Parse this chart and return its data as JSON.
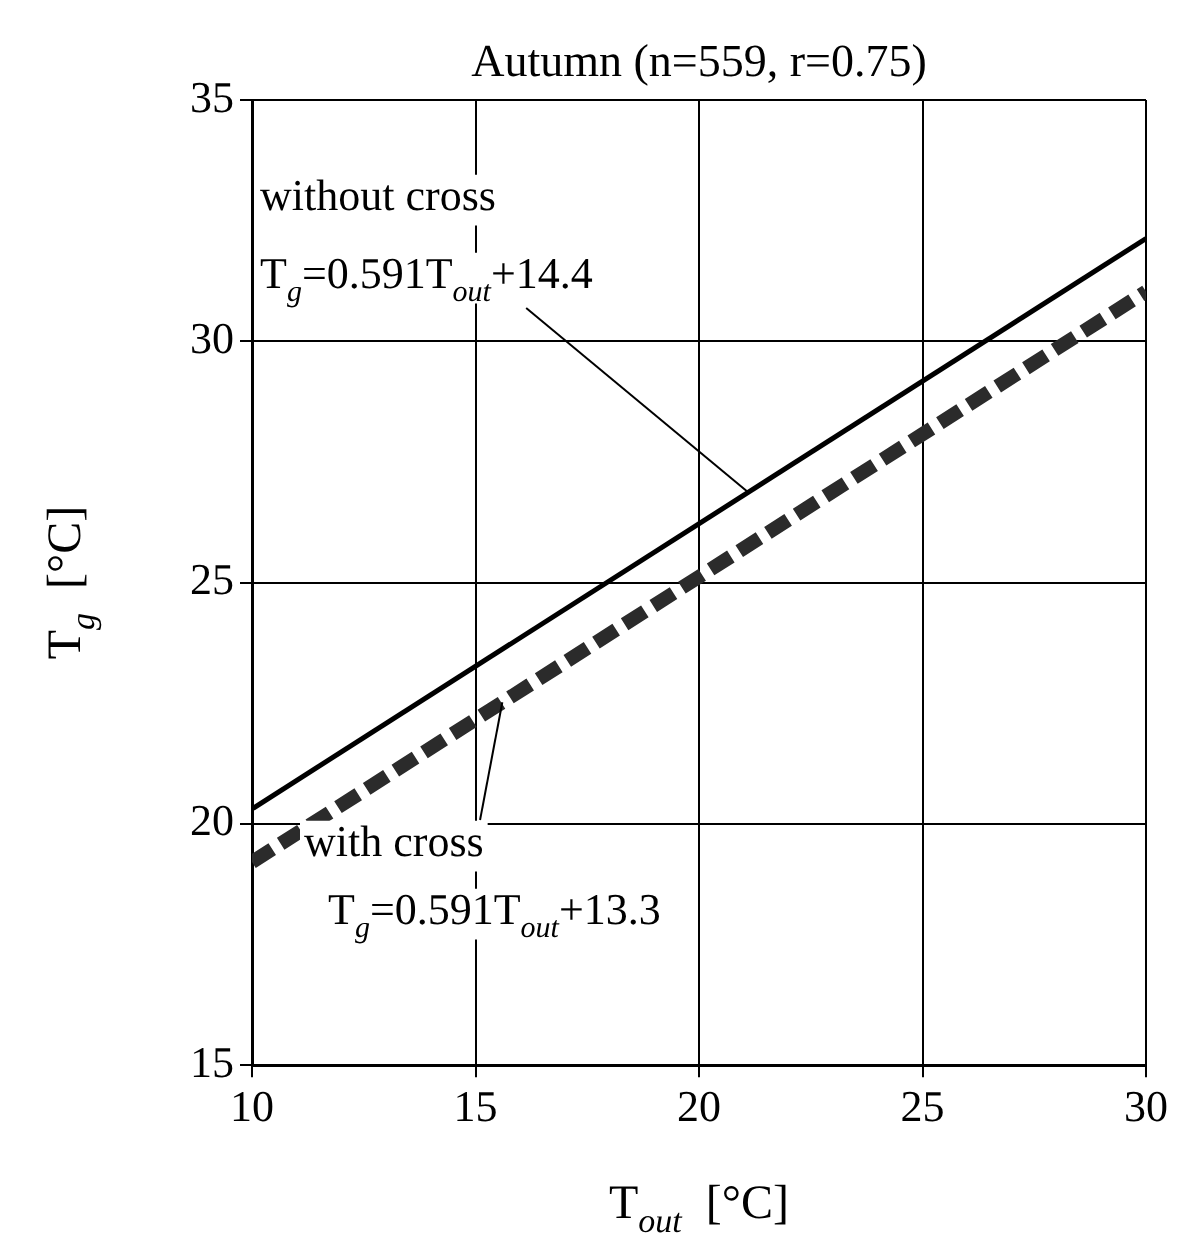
{
  "chart_data": {
    "type": "line",
    "title": "Autumn (n=559, r=0.75)",
    "xlabel": "T$_{out}$  [°C]",
    "ylabel": "T$_{g}$  [°C]",
    "x": [
      10,
      30
    ],
    "series": [
      {
        "color": "#000000",
        "values": [
          20.31,
          32.13
        ],
        "line_style": "solid"
      },
      {
        "color": "#2b2b2b",
        "values": [
          19.21,
          31.03
        ],
        "line_style": "dashed"
      }
    ],
    "xlim": [
      10,
      30
    ],
    "xticks": [
      10,
      15,
      20,
      25,
      30
    ],
    "ylim": [
      15,
      35
    ],
    "yticks": [
      15,
      20,
      25,
      30,
      35
    ],
    "grid": true,
    "legend": false,
    "marker": "none",
    "annotations": [
      "without cross",
      {
        "text": "T$_{g}$=0.591T$_{out}$+14.4",
        "x": 21.1,
        "y": 26.87
      },
      {
        "text": "with cross",
        "x": 15.6,
        "y": 22.52
      },
      "T$_{g}$=0.591T$_{out}$+13.3"
    ]
  }
}
